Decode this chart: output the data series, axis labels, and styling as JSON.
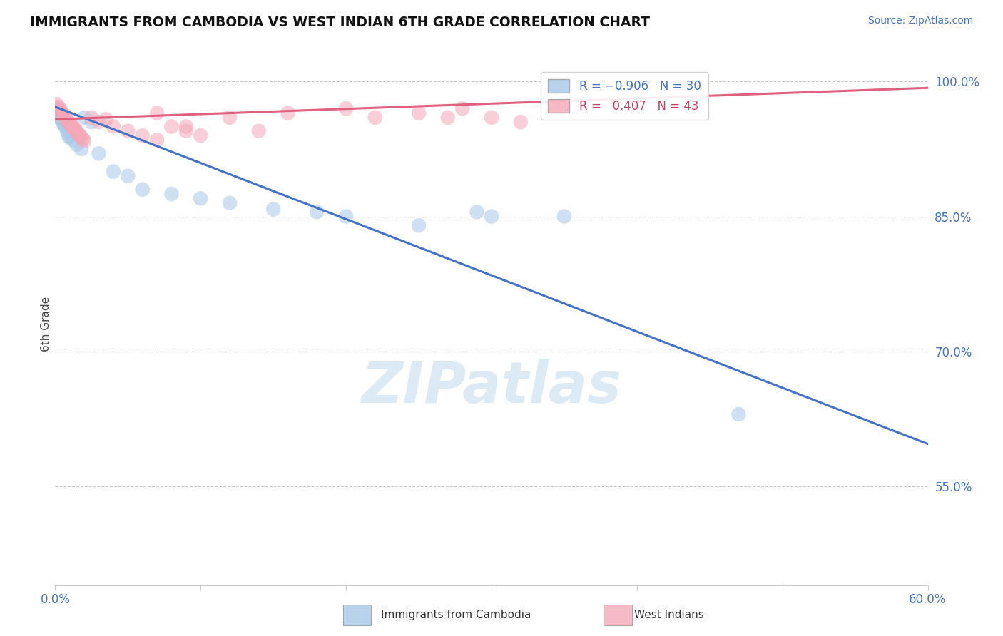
{
  "title": "IMMIGRANTS FROM CAMBODIA VS WEST INDIAN 6TH GRADE CORRELATION CHART",
  "source": "Source: ZipAtlas.com",
  "ylabel": "6th Grade",
  "watermark": "ZIPatlas",
  "xlim": [
    0.0,
    0.6
  ],
  "ylim": [
    0.44,
    1.02
  ],
  "xticks": [
    0.0,
    0.1,
    0.2,
    0.3,
    0.4,
    0.5,
    0.6
  ],
  "xtick_labels": [
    "0.0%",
    "",
    "",
    "",
    "",
    "",
    "60.0%"
  ],
  "ytick_labels_right": [
    "100.0%",
    "85.0%",
    "70.0%",
    "55.0%"
  ],
  "yticks_right": [
    1.0,
    0.85,
    0.7,
    0.55
  ],
  "blue_color": "#a8c8e8",
  "pink_color": "#f4a8b8",
  "blue_line_color": "#4472c4",
  "pink_line_color": "#e06080",
  "grid_color": "#c8c8c8",
  "blue_line_x": [
    0.0,
    0.6
  ],
  "blue_line_y": [
    0.972,
    0.597
  ],
  "pink_line_x": [
    0.0,
    0.6
  ],
  "pink_line_y": [
    0.958,
    0.993
  ],
  "blue_scatter_x": [
    0.001,
    0.002,
    0.003,
    0.004,
    0.005,
    0.006,
    0.007,
    0.008,
    0.009,
    0.01,
    0.012,
    0.015,
    0.018,
    0.02,
    0.025,
    0.03,
    0.04,
    0.05,
    0.06,
    0.08,
    0.1,
    0.12,
    0.15,
    0.18,
    0.2,
    0.25,
    0.3,
    0.35,
    0.47,
    0.29
  ],
  "blue_scatter_y": [
    0.97,
    0.965,
    0.96,
    0.958,
    0.955,
    0.952,
    0.95,
    0.945,
    0.94,
    0.938,
    0.935,
    0.93,
    0.925,
    0.96,
    0.955,
    0.92,
    0.9,
    0.895,
    0.88,
    0.875,
    0.87,
    0.865,
    0.858,
    0.855,
    0.85,
    0.84,
    0.85,
    0.85,
    0.63,
    0.855
  ],
  "pink_scatter_x": [
    0.001,
    0.002,
    0.003,
    0.004,
    0.005,
    0.006,
    0.007,
    0.008,
    0.009,
    0.01,
    0.011,
    0.012,
    0.013,
    0.014,
    0.015,
    0.016,
    0.017,
    0.018,
    0.019,
    0.02,
    0.025,
    0.03,
    0.035,
    0.04,
    0.05,
    0.06,
    0.07,
    0.08,
    0.09,
    0.1,
    0.12,
    0.14,
    0.16,
    0.2,
    0.22,
    0.25,
    0.28,
    0.3,
    0.32,
    0.35,
    0.27,
    0.07,
    0.09
  ],
  "pink_scatter_y": [
    0.975,
    0.972,
    0.97,
    0.968,
    0.965,
    0.963,
    0.96,
    0.958,
    0.955,
    0.953,
    0.952,
    0.95,
    0.948,
    0.946,
    0.944,
    0.942,
    0.94,
    0.938,
    0.936,
    0.934,
    0.96,
    0.955,
    0.958,
    0.95,
    0.945,
    0.94,
    0.935,
    0.95,
    0.945,
    0.94,
    0.96,
    0.945,
    0.965,
    0.97,
    0.96,
    0.965,
    0.97,
    0.96,
    0.955,
    0.975,
    0.96,
    0.965,
    0.95
  ]
}
